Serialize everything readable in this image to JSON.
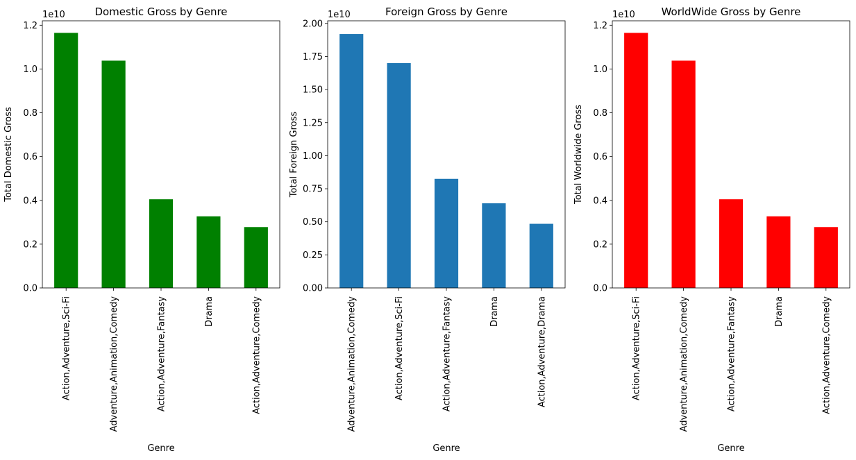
{
  "chart_data": [
    {
      "type": "bar",
      "title": "Domestic Gross by Genre",
      "xlabel": "Genre",
      "ylabel": "Total Domestic Gross",
      "offset_text": "1e10",
      "color": "#008000",
      "categories": [
        "Action,Adventure,Sci-Fi",
        "Adventure,Animation,Comedy",
        "Action,Adventure,Fantasy",
        "Drama",
        "Action,Adventure,Comedy"
      ],
      "values": [
        1.165,
        1.038,
        0.405,
        0.327,
        0.278
      ],
      "value_scale": 10000000000.0,
      "ylim": [
        0,
        1.22
      ],
      "yticks": [
        0.0,
        0.2,
        0.4,
        0.6,
        0.8,
        1.0,
        1.2
      ],
      "ytick_labels": [
        "0.0",
        "0.2",
        "0.4",
        "0.6",
        "0.8",
        "1.0",
        "1.2"
      ],
      "grid": false,
      "legend": "none"
    },
    {
      "type": "bar",
      "title": "Foreign Gross by Genre",
      "xlabel": "Genre",
      "ylabel": "Total Foreign Gross",
      "offset_text": "1e10",
      "color": "#1f77b4",
      "categories": [
        "Adventure,Animation,Comedy",
        "Action,Adventure,Sci-Fi",
        "Action,Adventure,Fantasy",
        "Drama",
        "Action,Adventure,Drama"
      ],
      "values": [
        1.92,
        1.7,
        0.825,
        0.64,
        0.485
      ],
      "value_scale": 10000000000.0,
      "ylim": [
        0,
        2.02
      ],
      "yticks": [
        0.0,
        0.25,
        0.5,
        0.75,
        1.0,
        1.25,
        1.5,
        1.75,
        2.0
      ],
      "ytick_labels": [
        "0.00",
        "0.25",
        "0.50",
        "0.75",
        "1.00",
        "1.25",
        "1.50",
        "1.75",
        "2.00"
      ],
      "grid": false,
      "legend": "none"
    },
    {
      "type": "bar",
      "title": "WorldWide Gross by Genre",
      "xlabel": "Genre",
      "ylabel": "Total Worldwide Gross",
      "offset_text": "1e10",
      "color": "#ff0000",
      "categories": [
        "Action,Adventure,Sci-Fi",
        "Adventure,Animation,Comedy",
        "Action,Adventure,Fantasy",
        "Drama",
        "Action,Adventure,Comedy"
      ],
      "values": [
        1.165,
        1.038,
        0.405,
        0.327,
        0.278
      ],
      "value_scale": 10000000000.0,
      "ylim": [
        0,
        1.22
      ],
      "yticks": [
        0.0,
        0.2,
        0.4,
        0.6,
        0.8,
        1.0,
        1.2
      ],
      "ytick_labels": [
        "0.0",
        "0.2",
        "0.4",
        "0.6",
        "0.8",
        "1.0",
        "1.2"
      ],
      "grid": false,
      "legend": "none"
    }
  ]
}
